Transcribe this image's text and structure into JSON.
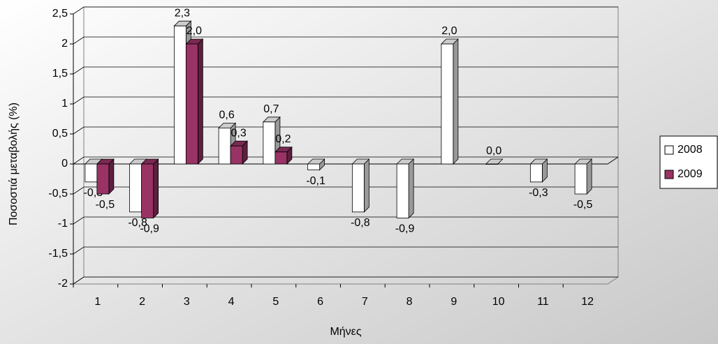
{
  "chart_data": {
    "type": "bar3d",
    "x_label": "Μήνες",
    "y_label": "Ποσοστιά μεταβολής (%)",
    "categories": [
      "1",
      "2",
      "3",
      "4",
      "5",
      "6",
      "7",
      "8",
      "9",
      "10",
      "11",
      "12"
    ],
    "series": [
      {
        "name": "2008",
        "color": "#ffffff",
        "values": [
          -0.3,
          -0.8,
          2.3,
          0.6,
          0.7,
          -0.1,
          -0.8,
          -0.9,
          2.0,
          0.0,
          -0.3,
          -0.5
        ],
        "value_labels": [
          "-0,3",
          "-0,8",
          "2,3",
          "0,6",
          "0,7",
          "-0,1",
          "-0,8",
          "-0,9",
          "2,0",
          "0,0",
          "-0,3",
          "-0,5"
        ]
      },
      {
        "name": "2009",
        "color": "#993366",
        "values": [
          -0.5,
          -0.9,
          2.0,
          0.3,
          0.2,
          null,
          null,
          null,
          null,
          null,
          null,
          null
        ],
        "value_labels": [
          "-0,5",
          "-0,9",
          "2,0",
          "0,3",
          "0,2",
          null,
          null,
          null,
          null,
          null,
          null,
          null
        ]
      }
    ],
    "ylim": [
      -2,
      2.5
    ],
    "yticks": [
      -2,
      {
        "value": -1.5,
        "label": "-1,5"
      },
      -1,
      {
        "value": -0.5,
        "label": "-0,5"
      },
      0,
      {
        "value": 0.5,
        "label": "0,5"
      },
      1,
      {
        "value": 1.5,
        "label": "1,5"
      },
      2,
      {
        "value": 2.5,
        "label": "2,5"
      }
    ],
    "grid": true,
    "legend": "right"
  }
}
